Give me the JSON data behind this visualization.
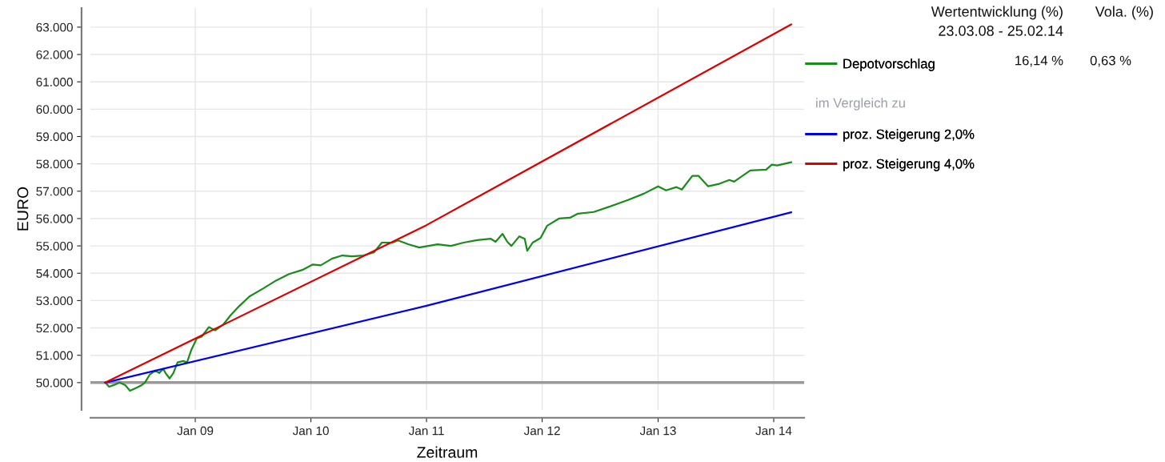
{
  "chart_data": {
    "type": "line",
    "xlabel": "Zeitraum",
    "ylabel": "EURO",
    "xlim": [
      "2008-02-05",
      "2014-04-07"
    ],
    "ylim": [
      49000,
      63700
    ],
    "xticks": [
      {
        "value": "2009-01-01",
        "label": "Jan 09"
      },
      {
        "value": "2010-01-01",
        "label": "Jan 10"
      },
      {
        "value": "2011-01-01",
        "label": "Jan 11"
      },
      {
        "value": "2012-01-01",
        "label": "Jan 12"
      },
      {
        "value": "2013-01-01",
        "label": "Jan 13"
      },
      {
        "value": "2014-01-01",
        "label": "Jan 14"
      }
    ],
    "yticks": [
      {
        "value": 50000,
        "label": "50.000"
      },
      {
        "value": 51000,
        "label": "51.000"
      },
      {
        "value": 52000,
        "label": "52.000"
      },
      {
        "value": 53000,
        "label": "53.000"
      },
      {
        "value": 54000,
        "label": "54.000"
      },
      {
        "value": 55000,
        "label": "55.000"
      },
      {
        "value": 56000,
        "label": "56.000"
      },
      {
        "value": 57000,
        "label": "57.000"
      },
      {
        "value": 58000,
        "label": "58.000"
      },
      {
        "value": 59000,
        "label": "59.000"
      },
      {
        "value": 60000,
        "label": "60.000"
      },
      {
        "value": 61000,
        "label": "61.000"
      },
      {
        "value": 62000,
        "label": "62.000"
      },
      {
        "value": 63000,
        "label": "63.000"
      }
    ],
    "grid": true,
    "legend": "right",
    "marker": "none",
    "line_style": "solid",
    "ref_lines": [
      {
        "axis": "y",
        "value": 50000,
        "color": "#999999"
      }
    ],
    "annotations": [
      "Wertentwicklung (%)",
      "23.03.08 - 25.02.14",
      "Vola. (%)",
      "16,14 %",
      "0,63 %",
      "im Vergleich zu"
    ],
    "series": [
      {
        "name": "Depotvorschlag",
        "color": "#1a8c1a",
        "x": [
          "2008-03-23",
          "2008-04-04",
          "2008-04-19",
          "2008-05-07",
          "2008-05-25",
          "2008-06-09",
          "2008-07-01",
          "2008-07-16",
          "2008-07-26",
          "2008-08-10",
          "2008-08-28",
          "2008-09-09",
          "2008-09-22",
          "2008-09-29",
          "2008-10-12",
          "2008-10-24",
          "2008-11-06",
          "2008-11-24",
          "2008-12-06",
          "2008-12-19",
          "2009-01-06",
          "2009-01-21",
          "2009-02-13",
          "2009-03-05",
          "2009-03-30",
          "2009-04-23",
          "2009-05-19",
          "2009-06-21",
          "2009-08-03",
          "2009-09-14",
          "2009-10-24",
          "2009-12-05",
          "2010-01-07",
          "2010-02-01",
          "2010-03-08",
          "2010-04-10",
          "2010-05-12",
          "2010-06-16",
          "2010-07-19",
          "2010-08-13",
          "2010-09-15",
          "2010-10-03",
          "2010-11-04",
          "2010-12-09",
          "2011-02-05",
          "2011-03-19",
          "2011-04-28",
          "2011-06-10",
          "2011-07-23",
          "2011-08-07",
          "2011-08-29",
          "2011-09-13",
          "2011-09-26",
          "2011-10-21",
          "2011-11-07",
          "2011-11-15",
          "2011-12-02",
          "2011-12-27",
          "2012-01-17",
          "2012-02-23",
          "2012-03-29",
          "2012-04-23",
          "2012-06-12",
          "2012-08-02",
          "2012-09-28",
          "2012-11-17",
          "2013-01-01",
          "2013-01-26",
          "2013-02-28",
          "2013-03-17",
          "2013-04-19",
          "2013-05-09",
          "2013-06-08",
          "2013-07-10",
          "2013-08-14",
          "2013-08-29",
          "2013-10-19",
          "2013-12-08",
          "2013-12-26",
          "2014-01-12",
          "2014-02-25"
        ],
        "values": [
          50000,
          49850,
          49910,
          50000,
          49910,
          49700,
          49820,
          49910,
          50000,
          50290,
          50440,
          50350,
          50500,
          50350,
          50150,
          50350,
          50740,
          50790,
          50740,
          51180,
          51620,
          51680,
          52030,
          51910,
          52120,
          52470,
          52790,
          53150,
          53440,
          53740,
          53970,
          54120,
          54320,
          54290,
          54530,
          54650,
          54620,
          54650,
          54760,
          55120,
          55120,
          55200,
          55060,
          54940,
          55060,
          55000,
          55120,
          55210,
          55260,
          55150,
          55440,
          55150,
          55000,
          55350,
          55260,
          54820,
          55120,
          55290,
          55740,
          56000,
          56030,
          56180,
          56240,
          56440,
          56680,
          56910,
          57180,
          57030,
          57150,
          57060,
          57560,
          57560,
          57180,
          57260,
          57410,
          57350,
          57760,
          57790,
          57970,
          57940,
          58060
        ]
      },
      {
        "name": "proz. Steigerung 2,0%",
        "color": "#0000ee",
        "x": [
          "2008-03-23",
          "2011-01-01",
          "2014-02-25"
        ],
        "values": [
          50000,
          52810,
          56230
        ]
      },
      {
        "name": "proz. Steigerung 4,0%",
        "color": "#dd0000",
        "x": [
          "2008-03-23",
          "2011-01-01",
          "2014-02-25"
        ],
        "values": [
          50000,
          55760,
          63100
        ]
      }
    ]
  }
}
